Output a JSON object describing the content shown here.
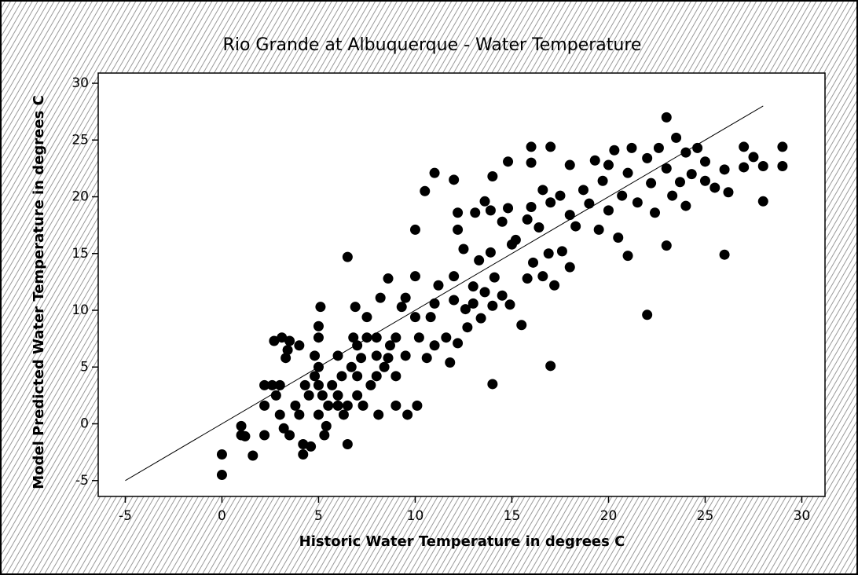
{
  "chart_data": {
    "type": "scatter",
    "title": "Rio Grande at Albuquerque - Water Temperature",
    "x_label": "Historic Water Temperature in degrees C",
    "y_label": "Model Predicted Water Temperature in degrees C",
    "color": "#000000",
    "xlim": [
      -6.4,
      31.2
    ],
    "ylim": [
      -6.4,
      30.9
    ],
    "xticks": [
      -5,
      0,
      5,
      10,
      15,
      20,
      25,
      30
    ],
    "yticks": [
      -5,
      0,
      5,
      10,
      15,
      20,
      25,
      30
    ],
    "reference_line": {
      "x": [
        -5,
        28
      ],
      "y": [
        -5,
        28
      ]
    },
    "x": [
      0,
      0,
      1,
      1.2,
      1,
      1.6,
      2.2,
      2.2,
      2.2,
      2.6,
      2.7,
      2.8,
      3,
      3,
      3.1,
      3.2,
      3.3,
      3.4,
      3.5,
      3.5,
      3.8,
      4,
      4,
      4.2,
      4.2,
      4.3,
      4.5,
      4.6,
      4.8,
      4.8,
      5,
      5,
      5,
      5,
      5,
      5.1,
      5.2,
      5.3,
      5.4,
      5.5,
      5.7,
      6,
      6,
      6,
      6.2,
      6.3,
      6.5,
      6.5,
      6.5,
      6.7,
      6.8,
      6.9,
      7,
      7,
      7,
      7.2,
      7.3,
      7.5,
      7.5,
      7.7,
      8,
      8,
      8,
      8.1,
      8.2,
      8.4,
      8.6,
      8.6,
      8.7,
      9,
      9,
      9,
      9.3,
      9.5,
      9.5,
      9.6,
      10,
      10,
      10,
      10.1,
      10.2,
      10.5,
      10.6,
      10.8,
      11,
      11,
      11,
      11.2,
      11.6,
      11.8,
      12,
      12,
      12,
      12.2,
      12.2,
      12.2,
      12.5,
      12.6,
      12.7,
      13,
      13,
      13.1,
      13.3,
      13.4,
      13.6,
      13.6,
      13.9,
      13.9,
      14,
      14,
      14,
      14.1,
      14.5,
      14.5,
      14.8,
      14.8,
      14.9,
      15,
      15.2,
      15.5,
      15.8,
      15.8,
      16,
      16,
      16,
      16.1,
      16.4,
      16.6,
      16.6,
      16.9,
      17,
      17,
      17,
      17.2,
      17.5,
      17.6,
      18,
      18,
      18,
      18.3,
      18.7,
      19,
      19.3,
      19.5,
      19.7,
      20,
      20,
      20.3,
      20.5,
      20.7,
      21,
      21,
      21.2,
      21.5,
      22,
      22,
      22.2,
      22.4,
      22.6,
      23,
      23,
      23,
      23.3,
      23.5,
      23.7,
      24,
      24,
      24.3,
      24.6,
      25,
      25,
      25.5,
      26,
      26,
      26.2,
      27,
      27,
      27.5,
      28,
      28,
      29,
      29
    ],
    "y": [
      -2.7,
      -4.5,
      -0.2,
      -1.1,
      -1,
      -2.8,
      -1,
      1.6,
      3.4,
      3.4,
      7.3,
      2.5,
      0.8,
      3.4,
      7.6,
      -0.4,
      5.8,
      6.5,
      7.3,
      -1,
      1.6,
      0.8,
      6.9,
      -1.8,
      -2.7,
      3.4,
      2.5,
      -2,
      4.2,
      6,
      0.8,
      3.4,
      5,
      7.6,
      8.6,
      10.3,
      2.5,
      -1,
      -0.2,
      1.6,
      3.4,
      6,
      2.5,
      1.6,
      4.2,
      0.8,
      1.6,
      14.7,
      -1.8,
      5,
      7.6,
      10.3,
      2.5,
      4.2,
      6.9,
      5.8,
      1.6,
      9.4,
      7.6,
      3.4,
      4.2,
      6,
      7.6,
      0.8,
      11.1,
      5,
      5.8,
      12.8,
      6.9,
      4.2,
      7.6,
      1.6,
      10.3,
      11.1,
      6,
      0.8,
      9.4,
      13,
      17.1,
      1.6,
      7.6,
      20.5,
      5.8,
      9.4,
      22.1,
      10.6,
      6.9,
      12.2,
      7.6,
      5.4,
      21.5,
      13,
      10.9,
      7.1,
      18.6,
      17.1,
      15.4,
      10.1,
      8.5,
      12.1,
      10.6,
      18.6,
      14.4,
      9.3,
      19.6,
      11.6,
      18.8,
      15.1,
      3.5,
      21.8,
      10.4,
      12.9,
      17.8,
      11.3,
      19,
      23.1,
      10.5,
      15.8,
      16.2,
      8.7,
      18,
      12.8,
      24.4,
      23,
      19.1,
      14.2,
      17.3,
      13,
      20.6,
      15,
      24.4,
      5.1,
      19.5,
      12.2,
      20.1,
      15.2,
      22.8,
      18.4,
      13.8,
      17.4,
      20.6,
      19.4,
      23.2,
      17.1,
      21.4,
      22.8,
      18.8,
      24.1,
      16.4,
      20.1,
      22.1,
      14.8,
      24.3,
      19.5,
      23.4,
      9.6,
      21.2,
      18.6,
      24.3,
      27,
      15.7,
      22.5,
      20.1,
      25.2,
      21.3,
      23.9,
      19.2,
      22,
      24.3,
      21.4,
      23.1,
      20.8,
      14.9,
      22.4,
      20.4,
      22.6,
      24.4,
      23.5,
      19.6,
      22.7,
      24.4,
      22.7
    ]
  }
}
